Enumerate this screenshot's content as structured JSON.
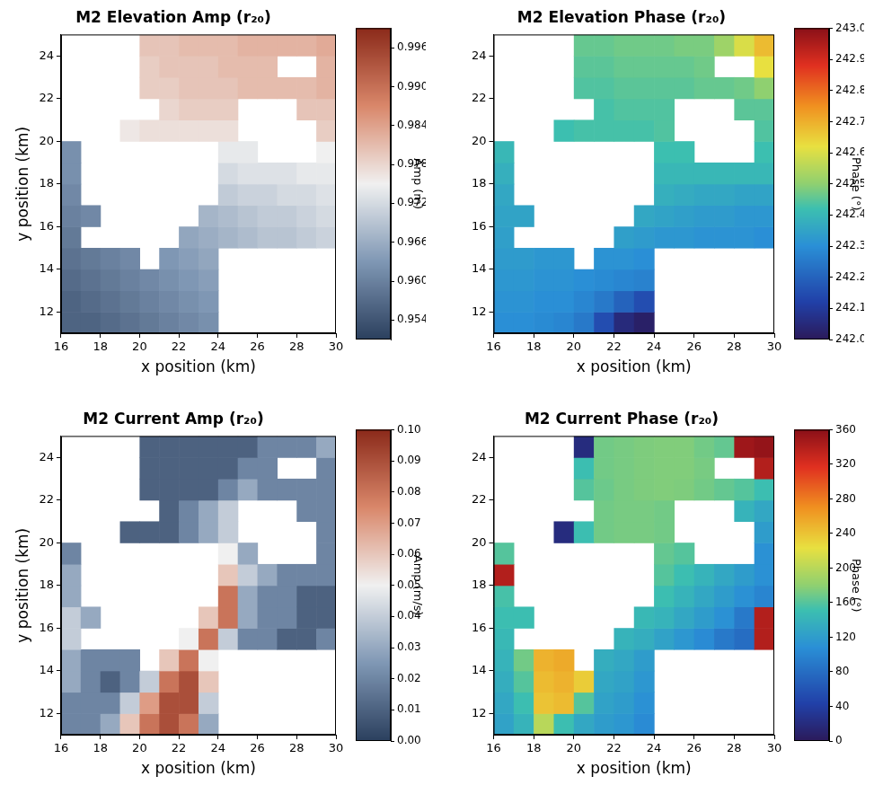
{
  "chart_data": [
    {
      "type": "heatmap",
      "title": "M2 Elevation Amp (r₂₀)",
      "xlabel": "x position (km)",
      "ylabel": "y position (km)",
      "xlim": [
        16,
        30
      ],
      "ylim": [
        11,
        25
      ],
      "xticks": [
        16,
        18,
        20,
        22,
        24,
        26,
        28,
        30
      ],
      "yticks": [
        12,
        14,
        16,
        18,
        20,
        22,
        24
      ],
      "grid": false,
      "x": [
        16.5,
        17.5,
        18.5,
        19.5,
        20.5,
        21.5,
        22.5,
        23.5,
        24.5,
        25.5,
        26.5,
        27.5,
        28.5,
        29.5
      ],
      "y": [
        11.5,
        12.5,
        13.5,
        14.5,
        15.5,
        16.5,
        17.5,
        18.5,
        19.5,
        20.5,
        21.5,
        22.5,
        23.5,
        24.5
      ],
      "cells": [
        [
          0.956,
          0.956,
          0.957,
          0.958,
          0.959,
          0.96,
          0.961,
          0.962,
          null,
          null,
          null,
          null,
          null,
          null
        ],
        [
          0.956,
          0.957,
          0.958,
          0.959,
          0.96,
          0.961,
          0.962,
          0.963,
          null,
          null,
          null,
          null,
          null,
          null
        ],
        [
          0.957,
          0.958,
          0.959,
          0.96,
          0.961,
          0.962,
          0.963,
          0.964,
          null,
          null,
          null,
          null,
          null,
          null
        ],
        [
          0.958,
          0.959,
          0.96,
          0.961,
          null,
          0.963,
          0.964,
          0.965,
          null,
          null,
          null,
          null,
          null,
          null
        ],
        [
          0.959,
          null,
          null,
          null,
          null,
          null,
          0.965,
          0.966,
          0.967,
          0.968,
          0.969,
          0.969,
          0.97,
          0.971
        ],
        [
          0.96,
          0.961,
          null,
          null,
          null,
          null,
          null,
          0.967,
          0.968,
          0.969,
          0.97,
          0.97,
          0.971,
          0.972
        ],
        [
          0.961,
          null,
          null,
          null,
          null,
          null,
          null,
          null,
          0.97,
          0.971,
          0.971,
          0.972,
          0.972,
          0.973
        ],
        [
          0.962,
          null,
          null,
          null,
          null,
          null,
          null,
          null,
          0.972,
          0.973,
          0.973,
          0.973,
          0.974,
          0.974
        ],
        [
          0.962,
          null,
          null,
          null,
          null,
          null,
          null,
          null,
          0.974,
          0.974,
          null,
          null,
          null,
          0.975
        ],
        [
          null,
          null,
          null,
          0.976,
          0.977,
          0.977,
          0.977,
          0.977,
          0.977,
          null,
          null,
          null,
          null,
          0.979
        ],
        [
          null,
          null,
          null,
          null,
          null,
          0.978,
          0.979,
          0.979,
          0.979,
          null,
          null,
          null,
          0.98,
          0.98
        ],
        [
          null,
          null,
          null,
          null,
          0.979,
          0.979,
          0.98,
          0.98,
          0.98,
          0.981,
          0.981,
          0.981,
          0.981,
          0.982
        ],
        [
          null,
          null,
          null,
          null,
          0.979,
          0.98,
          0.98,
          0.98,
          0.981,
          0.981,
          0.981,
          null,
          null,
          0.982
        ],
        [
          null,
          null,
          null,
          null,
          0.98,
          0.98,
          0.981,
          0.981,
          0.981,
          0.982,
          0.982,
          0.982,
          0.982,
          0.983
        ]
      ],
      "colorbar": {
        "label": "Amp (m)",
        "range": [
          0.951,
          0.999
        ],
        "ticks": [
          0.954,
          {
            "value": 0.96,
            "label": "0.960"
          },
          0.966,
          0.972,
          0.978,
          0.984,
          {
            "value": 0.99,
            "label": "0.990"
          },
          0.996
        ]
      }
    },
    {
      "type": "heatmap",
      "title": "M2 Elevation Phase (r₂₀)",
      "xlabel": "x position (km)",
      "xlim": [
        16,
        30
      ],
      "ylim": [
        11,
        25
      ],
      "xticks": [
        16,
        18,
        20,
        22,
        24,
        26,
        28,
        30
      ],
      "yticks": [
        12,
        14,
        16,
        18,
        20,
        22,
        24
      ],
      "grid": false,
      "x": [
        16.5,
        17.5,
        18.5,
        19.5,
        20.5,
        21.5,
        22.5,
        23.5,
        24.5,
        25.5,
        26.5,
        27.5,
        28.5,
        29.5
      ],
      "y": [
        11.5,
        12.5,
        13.5,
        14.5,
        15.5,
        16.5,
        17.5,
        18.5,
        19.5,
        20.5,
        21.5,
        22.5,
        23.5,
        24.5
      ],
      "cells": [
        [
          242.3,
          242.3,
          242.29,
          242.28,
          242.25,
          242.15,
          242.05,
          242.02,
          null,
          null,
          null,
          null,
          null,
          null
        ],
        [
          242.31,
          242.31,
          242.3,
          242.3,
          242.28,
          242.25,
          242.2,
          242.15,
          null,
          null,
          null,
          null,
          null,
          null
        ],
        [
          242.32,
          242.32,
          242.31,
          242.31,
          242.3,
          242.29,
          242.28,
          242.27,
          null,
          null,
          null,
          null,
          null,
          null
        ],
        [
          242.33,
          242.33,
          242.32,
          242.32,
          null,
          242.31,
          242.31,
          242.3,
          null,
          null,
          null,
          null,
          null,
          null
        ],
        [
          242.34,
          null,
          null,
          null,
          null,
          null,
          242.34,
          242.33,
          242.32,
          242.32,
          242.31,
          242.31,
          242.31,
          242.3
        ],
        [
          242.35,
          242.35,
          null,
          null,
          null,
          null,
          null,
          242.36,
          242.35,
          242.34,
          242.33,
          242.33,
          242.32,
          242.32
        ],
        [
          242.36,
          null,
          null,
          null,
          null,
          null,
          null,
          null,
          242.38,
          242.37,
          242.36,
          242.36,
          242.35,
          242.35
        ],
        [
          242.38,
          null,
          null,
          null,
          null,
          null,
          null,
          null,
          242.4,
          242.4,
          242.4,
          242.4,
          242.4,
          242.4
        ],
        [
          242.4,
          null,
          null,
          null,
          null,
          null,
          null,
          null,
          242.42,
          242.42,
          null,
          null,
          null,
          242.42
        ],
        [
          null,
          null,
          null,
          242.42,
          242.43,
          242.43,
          242.43,
          242.43,
          242.44,
          null,
          null,
          null,
          null,
          242.44
        ],
        [
          null,
          null,
          null,
          null,
          null,
          242.43,
          242.44,
          242.44,
          242.44,
          null,
          null,
          null,
          242.45,
          242.45
        ],
        [
          null,
          null,
          null,
          null,
          242.44,
          242.44,
          242.45,
          242.45,
          242.45,
          242.45,
          242.46,
          242.46,
          242.47,
          242.5
        ],
        [
          null,
          null,
          null,
          null,
          242.45,
          242.45,
          242.46,
          242.46,
          242.46,
          242.46,
          242.47,
          null,
          null,
          242.62
        ],
        [
          null,
          null,
          null,
          null,
          242.46,
          242.46,
          242.47,
          242.47,
          242.47,
          242.48,
          242.48,
          242.52,
          242.6,
          242.68
        ]
      ],
      "colorbar": {
        "label": "Phase (°)",
        "range": [
          242,
          243
        ],
        "ticks": [
          {
            "value": 242,
            "label": "242.0"
          },
          242.1,
          242.2,
          242.3,
          242.4,
          242.5,
          242.6,
          242.7,
          242.8,
          242.9,
          {
            "value": 243,
            "label": "243.0"
          }
        ]
      }
    },
    {
      "type": "heatmap",
      "title": "M2 Current Amp (r₂₀)",
      "xlabel": "x position (km)",
      "ylabel": "y position (km)",
      "xlim": [
        16,
        30
      ],
      "ylim": [
        11,
        25
      ],
      "xticks": [
        16,
        18,
        20,
        22,
        24,
        26,
        28,
        30
      ],
      "yticks": [
        12,
        14,
        16,
        18,
        20,
        22,
        24
      ],
      "grid": false,
      "x": [
        16.5,
        17.5,
        18.5,
        19.5,
        20.5,
        21.5,
        22.5,
        23.5,
        24.5,
        25.5,
        26.5,
        27.5,
        28.5,
        29.5
      ],
      "y": [
        11.5,
        12.5,
        13.5,
        14.5,
        15.5,
        16.5,
        17.5,
        18.5,
        19.5,
        20.5,
        21.5,
        22.5,
        23.5,
        24.5
      ],
      "cells": [
        [
          0.02,
          0.02,
          0.03,
          0.06,
          0.08,
          0.09,
          0.08,
          0.03,
          null,
          null,
          null,
          null,
          null,
          null
        ],
        [
          0.02,
          0.02,
          0.02,
          0.04,
          0.07,
          0.09,
          0.09,
          0.04,
          null,
          null,
          null,
          null,
          null,
          null
        ],
        [
          0.03,
          0.02,
          0.01,
          0.02,
          0.04,
          0.08,
          0.09,
          0.06,
          null,
          null,
          null,
          null,
          null,
          null
        ],
        [
          0.03,
          0.02,
          0.02,
          0.02,
          null,
          0.06,
          0.08,
          0.05,
          null,
          null,
          null,
          null,
          null,
          null
        ],
        [
          0.04,
          null,
          null,
          null,
          null,
          null,
          0.05,
          0.08,
          0.04,
          0.02,
          0.02,
          0.01,
          0.01,
          0.02
        ],
        [
          0.04,
          0.03,
          null,
          null,
          null,
          null,
          null,
          0.06,
          0.08,
          0.03,
          0.02,
          0.02,
          0.01,
          0.01
        ],
        [
          0.03,
          null,
          null,
          null,
          null,
          null,
          null,
          null,
          0.08,
          0.03,
          0.02,
          0.02,
          0.01,
          0.01
        ],
        [
          0.03,
          null,
          null,
          null,
          null,
          null,
          null,
          null,
          0.06,
          0.04,
          0.03,
          0.02,
          0.02,
          0.02
        ],
        [
          0.02,
          null,
          null,
          null,
          null,
          null,
          null,
          null,
          0.05,
          0.03,
          null,
          null,
          null,
          0.02
        ],
        [
          null,
          null,
          null,
          0.01,
          0.01,
          0.01,
          0.02,
          0.03,
          0.04,
          null,
          null,
          null,
          null,
          0.02
        ],
        [
          null,
          null,
          null,
          null,
          null,
          0.01,
          0.02,
          0.03,
          0.04,
          null,
          null,
          null,
          0.02,
          0.02
        ],
        [
          null,
          null,
          null,
          null,
          0.01,
          0.01,
          0.01,
          0.01,
          0.02,
          0.03,
          0.02,
          0.02,
          0.02,
          0.02
        ],
        [
          null,
          null,
          null,
          null,
          0.01,
          0.01,
          0.01,
          0.01,
          0.01,
          0.02,
          0.02,
          null,
          null,
          0.02
        ],
        [
          null,
          null,
          null,
          null,
          0.01,
          0.01,
          0.01,
          0.01,
          0.01,
          0.01,
          0.02,
          0.02,
          0.02,
          0.03
        ]
      ],
      "colorbar": {
        "label": "Amp (m/s)",
        "range": [
          0,
          0.1
        ],
        "ticks": [
          {
            "value": 0,
            "label": "0.00"
          },
          0.01,
          0.02,
          0.03,
          0.04,
          0.05,
          0.06,
          0.07,
          0.08,
          0.09,
          {
            "value": 0.1,
            "label": "0.10"
          }
        ]
      }
    },
    {
      "type": "heatmap",
      "title": "M2 Current Phase (r₂₀)",
      "xlabel": "x position (km)",
      "xlim": [
        16,
        30
      ],
      "ylim": [
        11,
        25
      ],
      "xticks": [
        16,
        18,
        20,
        22,
        24,
        26,
        28,
        30
      ],
      "yticks": [
        12,
        14,
        16,
        18,
        20,
        22,
        24
      ],
      "grid": false,
      "x": [
        16.5,
        17.5,
        18.5,
        19.5,
        20.5,
        21.5,
        22.5,
        23.5,
        24.5,
        25.5,
        26.5,
        27.5,
        28.5,
        29.5
      ],
      "y": [
        11.5,
        12.5,
        13.5,
        14.5,
        15.5,
        16.5,
        17.5,
        18.5,
        19.5,
        20.5,
        21.5,
        22.5,
        23.5,
        24.5
      ],
      "cells": [
        [
          125,
          140,
          200,
          150,
          130,
          120,
          115,
          105,
          null,
          null,
          null,
          null,
          null,
          null
        ],
        [
          130,
          150,
          240,
          245,
          160,
          125,
          120,
          110,
          null,
          null,
          null,
          null,
          null,
          null
        ],
        [
          135,
          160,
          245,
          250,
          235,
          130,
          125,
          115,
          null,
          null,
          null,
          null,
          null,
          null
        ],
        [
          140,
          170,
          250,
          255,
          null,
          135,
          130,
          120,
          null,
          null,
          null,
          null,
          null,
          null
        ],
        [
          145,
          null,
          null,
          null,
          null,
          null,
          140,
          135,
          125,
          115,
          105,
          90,
          80,
          340
        ],
        [
          150,
          150,
          null,
          null,
          null,
          null,
          null,
          145,
          140,
          130,
          120,
          110,
          90,
          340
        ],
        [
          155,
          null,
          null,
          null,
          null,
          null,
          null,
          null,
          150,
          140,
          130,
          120,
          110,
          100
        ],
        [
          340,
          null,
          null,
          null,
          null,
          null,
          null,
          null,
          160,
          150,
          140,
          130,
          120,
          110
        ],
        [
          160,
          null,
          null,
          null,
          null,
          null,
          null,
          null,
          165,
          160,
          null,
          null,
          null,
          110
        ],
        [
          null,
          null,
          null,
          20,
          150,
          170,
          172,
          172,
          170,
          null,
          null,
          null,
          null,
          120
        ],
        [
          null,
          null,
          null,
          null,
          null,
          170,
          172,
          172,
          170,
          null,
          null,
          null,
          140,
          130
        ],
        [
          null,
          null,
          null,
          null,
          160,
          168,
          172,
          174,
          175,
          174,
          170,
          165,
          160,
          150
        ],
        [
          null,
          null,
          null,
          null,
          150,
          170,
          172,
          174,
          175,
          175,
          172,
          null,
          null,
          340
        ],
        [
          null,
          null,
          null,
          null,
          20,
          170,
          172,
          174,
          175,
          175,
          170,
          165,
          350,
          355
        ]
      ],
      "colorbar": {
        "label": "Phase (°)",
        "range": [
          0,
          360
        ],
        "ticks": [
          0,
          40,
          80,
          120,
          160,
          200,
          240,
          280,
          320,
          360
        ]
      }
    }
  ]
}
